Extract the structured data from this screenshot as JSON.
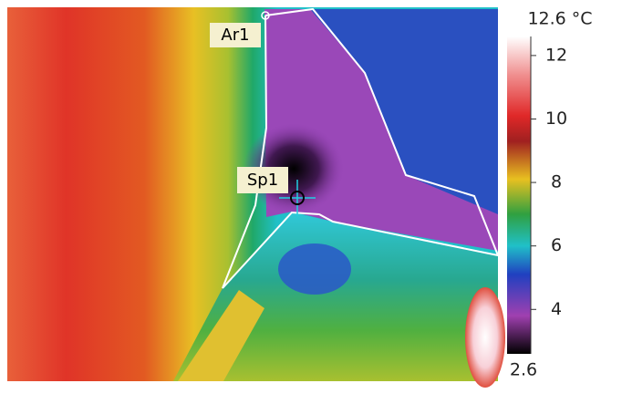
{
  "scale": {
    "max": {
      "value": 12.6,
      "label": "12.6 °C"
    },
    "min": {
      "value": 2.6,
      "label": "2.6"
    },
    "ticks": [
      12,
      10,
      8,
      6,
      4
    ]
  },
  "markers": {
    "area": "Ar1",
    "spot": "Sp1"
  }
}
